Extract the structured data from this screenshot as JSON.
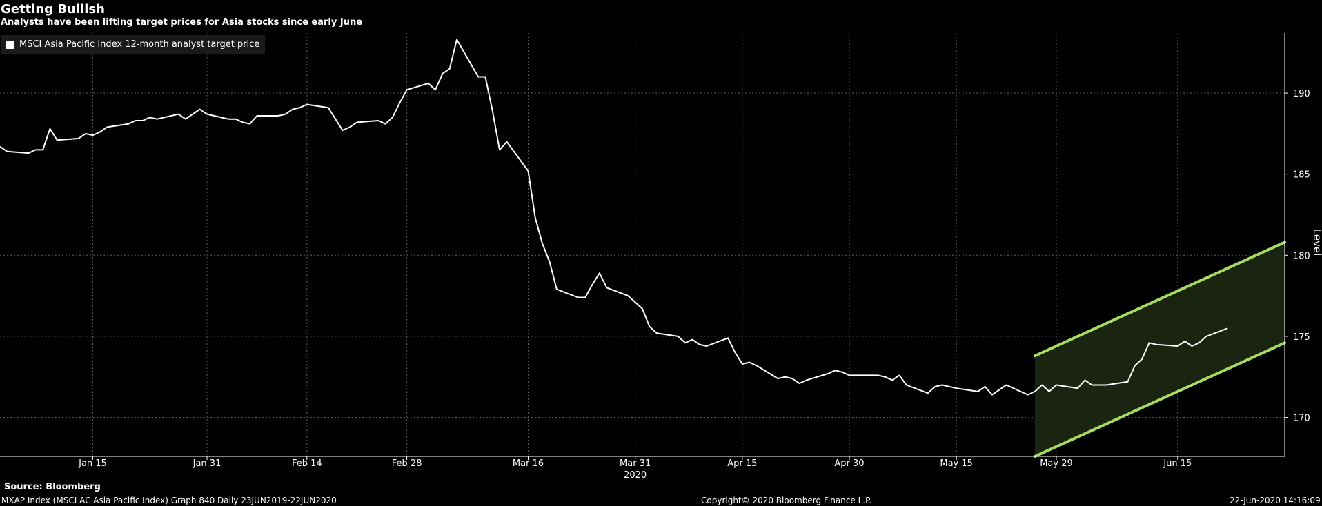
{
  "header": {
    "title": "Getting Bullish",
    "subtitle": "Analysts have been lifting target prices for Asia stocks since early June"
  },
  "legend": {
    "entries": [
      {
        "label": "MSCI Asia Pacific Index 12-month analyst target price",
        "color": "#ffffff"
      }
    ],
    "placement": "top-left"
  },
  "footer": {
    "source": "Source: Bloomberg",
    "meta": "MXAP Index (MSCI AC Asia Pacific Index) Graph 840  Daily 23JUN2019-22JUN2020",
    "copyright": "Copyright© 2020 Bloomberg Finance L.P.",
    "timestamp": "22-Jun-2020 14:16:09"
  },
  "colors": {
    "background": "#000000",
    "series": "#ffffff",
    "grid": "#5a5a5a",
    "channel": "#a6dd5e",
    "channel_fill": "#1a2410"
  },
  "chart_data": {
    "type": "line",
    "ylabel": "Level",
    "xlabel": "2020",
    "ylim": [
      167.6,
      193.7
    ],
    "xlim": [
      "2020-01-02",
      "2020-06-30"
    ],
    "y_ticks": [
      170,
      175,
      180,
      185,
      190
    ],
    "x_ticks": [
      {
        "date": "2020-01-15",
        "label": "Jan 15"
      },
      {
        "date": "2020-01-31",
        "label": "Jan 31"
      },
      {
        "date": "2020-02-14",
        "label": "Feb 14"
      },
      {
        "date": "2020-02-28",
        "label": "Feb 28"
      },
      {
        "date": "2020-03-16",
        "label": "Mar 16"
      },
      {
        "date": "2020-03-31",
        "label": "Mar 31"
      },
      {
        "date": "2020-04-15",
        "label": "Apr 15"
      },
      {
        "date": "2020-04-30",
        "label": "Apr 30"
      },
      {
        "date": "2020-05-15",
        "label": "May 15"
      },
      {
        "date": "2020-05-29",
        "label": "May 29"
      },
      {
        "date": "2020-06-15",
        "label": "Jun 15"
      }
    ],
    "grid": true,
    "series": [
      {
        "name": "MSCI Asia Pacific Index 12-month analyst target price",
        "x": [
          "2020-01-02",
          "2020-01-03",
          "2020-01-06",
          "2020-01-07",
          "2020-01-08",
          "2020-01-09",
          "2020-01-10",
          "2020-01-13",
          "2020-01-14",
          "2020-01-15",
          "2020-01-16",
          "2020-01-17",
          "2020-01-20",
          "2020-01-21",
          "2020-01-22",
          "2020-01-23",
          "2020-01-24",
          "2020-01-27",
          "2020-01-28",
          "2020-01-29",
          "2020-01-30",
          "2020-01-31",
          "2020-02-03",
          "2020-02-04",
          "2020-02-05",
          "2020-02-06",
          "2020-02-07",
          "2020-02-10",
          "2020-02-11",
          "2020-02-12",
          "2020-02-13",
          "2020-02-14",
          "2020-02-17",
          "2020-02-18",
          "2020-02-19",
          "2020-02-20",
          "2020-02-21",
          "2020-02-24",
          "2020-02-25",
          "2020-02-26",
          "2020-02-27",
          "2020-02-28",
          "2020-03-02",
          "2020-03-03",
          "2020-03-04",
          "2020-03-05",
          "2020-03-06",
          "2020-03-09",
          "2020-03-10",
          "2020-03-11",
          "2020-03-12",
          "2020-03-13",
          "2020-03-16",
          "2020-03-17",
          "2020-03-18",
          "2020-03-19",
          "2020-03-20",
          "2020-03-23",
          "2020-03-24",
          "2020-03-25",
          "2020-03-26",
          "2020-03-27",
          "2020-03-30",
          "2020-03-31",
          "2020-04-01",
          "2020-04-02",
          "2020-04-03",
          "2020-04-06",
          "2020-04-07",
          "2020-04-08",
          "2020-04-09",
          "2020-04-10",
          "2020-04-13",
          "2020-04-14",
          "2020-04-15",
          "2020-04-16",
          "2020-04-17",
          "2020-04-20",
          "2020-04-21",
          "2020-04-22",
          "2020-04-23",
          "2020-04-24",
          "2020-04-27",
          "2020-04-28",
          "2020-04-29",
          "2020-04-30",
          "2020-05-01",
          "2020-05-04",
          "2020-05-05",
          "2020-05-06",
          "2020-05-07",
          "2020-05-08",
          "2020-05-11",
          "2020-05-12",
          "2020-05-13",
          "2020-05-14",
          "2020-05-15",
          "2020-05-18",
          "2020-05-19",
          "2020-05-20",
          "2020-05-21",
          "2020-05-22",
          "2020-05-25",
          "2020-05-26",
          "2020-05-27",
          "2020-05-28",
          "2020-05-29",
          "2020-06-01",
          "2020-06-02",
          "2020-06-03",
          "2020-06-04",
          "2020-06-05",
          "2020-06-08",
          "2020-06-09",
          "2020-06-10",
          "2020-06-11",
          "2020-06-12",
          "2020-06-15",
          "2020-06-16",
          "2020-06-17",
          "2020-06-18",
          "2020-06-19",
          "2020-06-22"
        ],
        "values": [
          186.7,
          186.4,
          186.3,
          186.5,
          186.5,
          187.8,
          187.1,
          187.2,
          187.5,
          187.4,
          187.6,
          187.9,
          188.1,
          188.3,
          188.3,
          188.5,
          188.4,
          188.7,
          188.4,
          188.7,
          189.0,
          188.7,
          188.4,
          188.4,
          188.2,
          188.1,
          188.6,
          188.6,
          188.7,
          189.0,
          189.1,
          189.3,
          189.1,
          188.4,
          187.7,
          187.9,
          188.2,
          188.3,
          188.1,
          188.5,
          189.4,
          190.2,
          190.6,
          190.2,
          191.2,
          191.5,
          193.3,
          191.0,
          191.0,
          188.9,
          186.5,
          187.0,
          185.2,
          182.3,
          180.7,
          179.6,
          177.9,
          177.4,
          177.4,
          178.2,
          178.9,
          178.0,
          177.5,
          177.1,
          176.7,
          175.6,
          175.2,
          175.0,
          174.6,
          174.8,
          174.5,
          174.4,
          174.9,
          174.0,
          173.3,
          173.4,
          173.2,
          172.4,
          172.5,
          172.4,
          172.1,
          172.3,
          172.7,
          172.9,
          172.8,
          172.6,
          172.6,
          172.6,
          172.5,
          172.3,
          172.6,
          172.0,
          171.5,
          171.9,
          172.0,
          171.9,
          171.8,
          171.6,
          171.9,
          171.4,
          171.7,
          172.0,
          171.4,
          171.6,
          172.0,
          171.6,
          172.0,
          171.8,
          172.3,
          172.0,
          172.0,
          172.0,
          172.2,
          173.2,
          173.6,
          174.6,
          174.5,
          174.4,
          174.7,
          174.4,
          174.6,
          175.0,
          175.5
        ]
      }
    ],
    "channel": {
      "x": [
        "2020-05-26",
        "2020-06-30"
      ],
      "upper": [
        173.8,
        180.8
      ],
      "lower": [
        167.6,
        174.6
      ]
    }
  }
}
